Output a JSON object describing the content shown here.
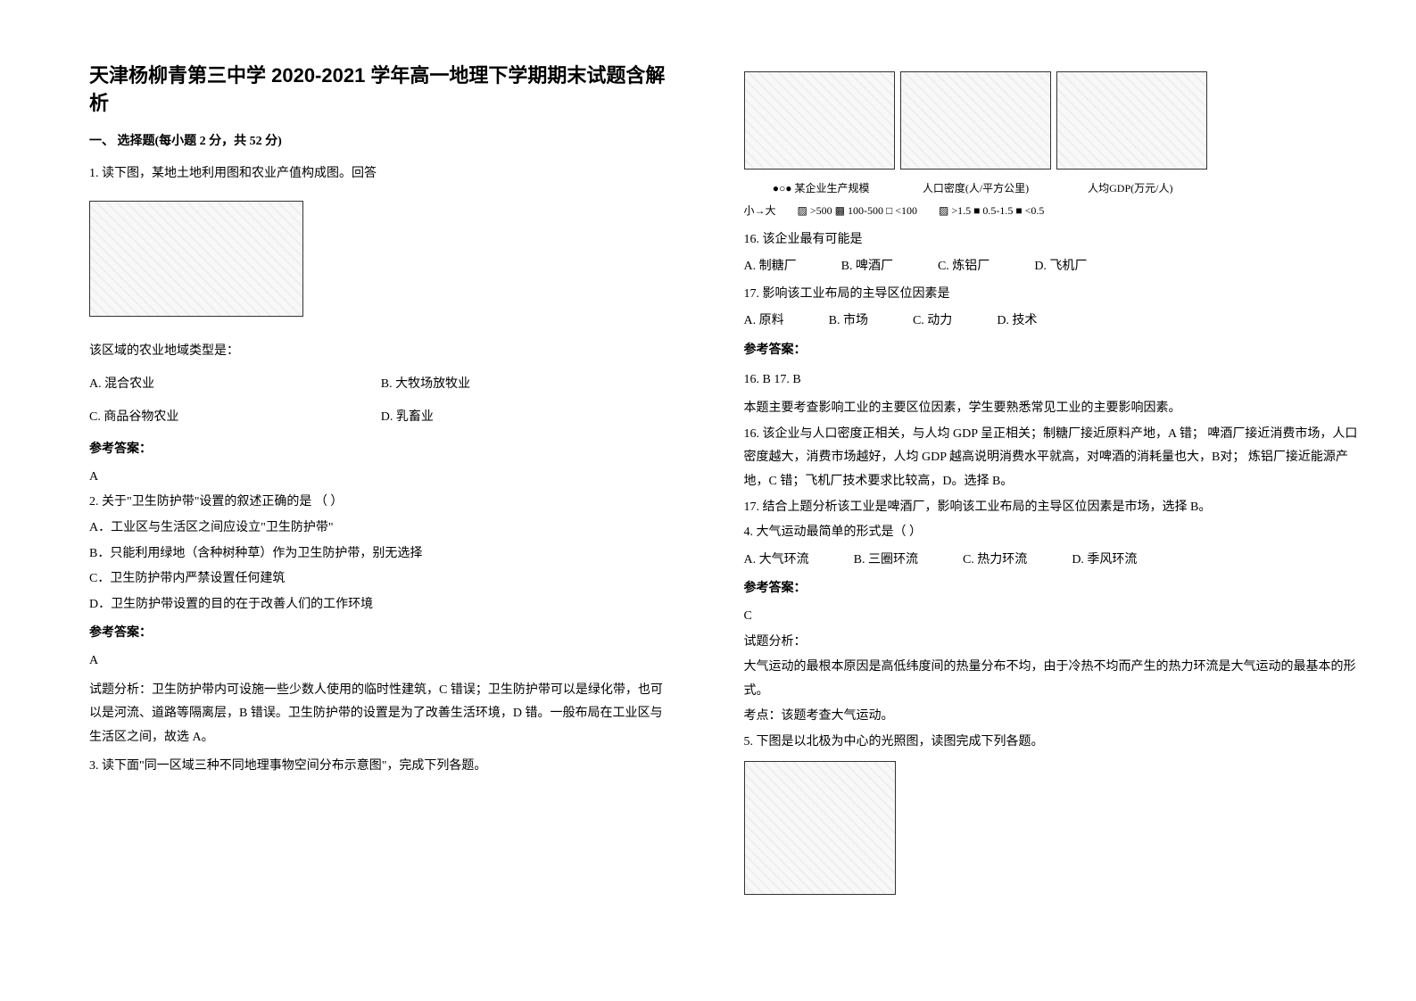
{
  "doc": {
    "title": "天津杨柳青第三中学 2020-2021 学年高一地理下学期期末试题含解析",
    "section1": "一、 选择题(每小题 2 分，共 52 分)",
    "q1_stem": "1. 读下图，某地土地利用图和农业产值构成图。回答",
    "q1_prompt": "该区域的农业地域类型是：",
    "q1_A": "A. 混合农业",
    "q1_B": "B. 大牧场放牧业",
    "q1_C": "C. 商品谷物农业",
    "q1_D": "D. 乳畜业",
    "ans_label": "参考答案：",
    "q1_ans": "A",
    "q2_stem": "2. 关于\"卫生防护带\"设置的叙述正确的是  （      ）",
    "q2_A": "A．工业区与生活区之间应设立\"卫生防护带\"",
    "q2_B": "B．只能利用绿地（含种树种草）作为卫生防护带，别无选择",
    "q2_C": "C．卫生防护带内严禁设置任何建筑",
    "q2_D": "D．卫生防护带设置的目的在于改善人们的工作环境",
    "q2_ans": "A",
    "q2_explain": "试题分析：卫生防护带内可设施一些少数人使用的临时性建筑，C 错误；卫生防护带可以是绿化带，也可以是河流、道路等隔离层，B 错误。卫生防护带的设置是为了改善生活环境，D 错。一般布局在工业区与生活区之间，故选 A。",
    "q3_stem": "3. 读下面\"同一区域三种不同地理事物空间分布示意图\"，完成下列各题。",
    "fig3_cap1": "某企业生产规模",
    "fig3_cap2": "人口密度(人/平方公里)",
    "fig3_cap3": "人均GDP(万元/人)",
    "fig3_leg_left": "小→大",
    "fig3_leg_mid": "▨ >500  ▩ 100-500  □ <100",
    "fig3_leg_right": "▨ >1.5  ■ 0.5-1.5  ■ <0.5",
    "q16_stem": "16.   该企业最有可能是",
    "q16_A": "A. 制糖厂",
    "q16_B": "B. 啤酒厂",
    "q16_C": "C. 炼铝厂",
    "q16_D": "D. 飞机厂",
    "q17_stem": "17.   影响该工业布局的主导区位因素是",
    "q17_A": "A. 原料",
    "q17_B": "B. 市场",
    "q17_C": "C. 动力",
    "q17_D": "D. 技术",
    "q3_ans": "16. B        17. B",
    "q3_exp1": "本题主要考查影响工业的主要区位因素，学生要熟悉常见工业的主要影响因素。",
    "q3_exp2": "16.   该企业与人口密度正相关，与人均 GDP 呈正相关；制糖厂接近原料产地，A 错；  啤酒厂接近消费市场，人口密度越大，消费市场越好，人均 GDP 越高说明消费水平就高，对啤酒的消耗量也大，B对；  炼铝厂接近能源产地，C 错；飞机厂技术要求比较高，D。选择 B。",
    "q3_exp3": "17.   结合上题分析该工业是啤酒厂，影响该工业布局的主导区位因素是市场，选择 B。",
    "q4_stem": "4. 大气运动最简单的形式是（        ）",
    "q4_A": "A. 大气环流",
    "q4_B": "B. 三圈环流",
    "q4_C": "C. 热力环流",
    "q4_D": "D. 季风环流",
    "q4_ans": "C",
    "q4_exp_h": "试题分析：",
    "q4_exp1": "大气运动的最根本原因是高低纬度间的热量分布不均，由于冷热不均而产生的热力环流是大气运动的最基本的形式。",
    "q4_exp2": "考点：该题考查大气运动。",
    "q5_stem": "5. 下图是以北极为中心的光照图，读图完成下列各题。"
  },
  "style": {
    "text_color": "#000000",
    "bg_color": "#ffffff",
    "title_fontsize": 22,
    "body_fontsize": 14,
    "caption_fontsize": 12,
    "figure_border": "#333333"
  }
}
